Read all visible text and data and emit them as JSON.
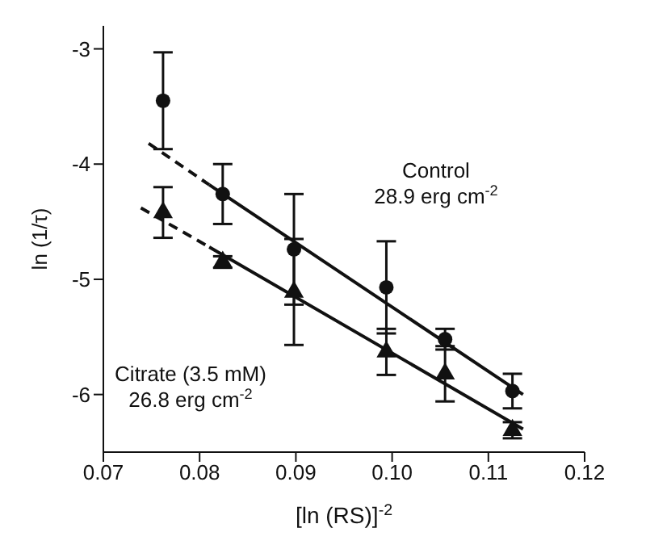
{
  "chart_data": {
    "type": "scatter",
    "xlabel": "[ln (RS)]$^{-2}$",
    "ylabel": "ln (1/τ)",
    "xlim": [
      0.07,
      0.12
    ],
    "xticks": [
      0.07,
      0.08,
      0.09,
      {
        "value": 0.1,
        "label": "0.10"
      },
      0.11,
      0.12
    ],
    "ylim": [
      -6.5,
      -2.8
    ],
    "yticks": [
      -3,
      -4,
      -5,
      -6
    ],
    "grid": false,
    "legend": false,
    "series": [
      {
        "marker": "circle",
        "color": "#111111",
        "x": [
          0.0762,
          0.0824,
          0.0898,
          0.0994,
          0.1055,
          0.1125
        ],
        "values": [
          -3.45,
          -4.26,
          -4.74,
          -5.07,
          -5.52,
          -5.97
        ],
        "errors": [
          0.42,
          0.26,
          0.48,
          0.4,
          0.09,
          0.15
        ]
      },
      {
        "marker": "triangle",
        "color": "#111111",
        "x": [
          0.0762,
          0.0824,
          0.0898,
          0.0994,
          0.1055,
          0.1125
        ],
        "values": [
          -4.42,
          -4.85,
          -5.11,
          -5.63,
          -5.82,
          -6.31
        ],
        "errors": [
          0.22,
          0.05,
          0.46,
          0.2,
          0.24,
          0.07
        ]
      },
      {
        "type": "line",
        "line_style": "dashed",
        "color": "#111111",
        "x": [
          0.0747,
          0.081
        ],
        "values": [
          -3.82,
          -4.18
        ]
      },
      {
        "type": "line",
        "line_style": "solid",
        "color": "#111111",
        "x": [
          0.081,
          0.1136
        ],
        "values": [
          -4.18,
          -6.0
        ]
      },
      {
        "type": "line",
        "line_style": "dashed",
        "color": "#111111",
        "x": [
          0.0739,
          0.081
        ],
        "values": [
          -4.38,
          -4.72
        ]
      },
      {
        "type": "line",
        "line_style": "solid",
        "color": "#111111",
        "x": [
          0.081,
          0.1136
        ],
        "values": [
          -4.72,
          -6.3
        ]
      }
    ],
    "annotations": [
      "Control",
      "28.9 erg cm$^{-2}$",
      "Citrate (3.5 mM)",
      "26.8 erg cm$^{-2}$"
    ]
  }
}
